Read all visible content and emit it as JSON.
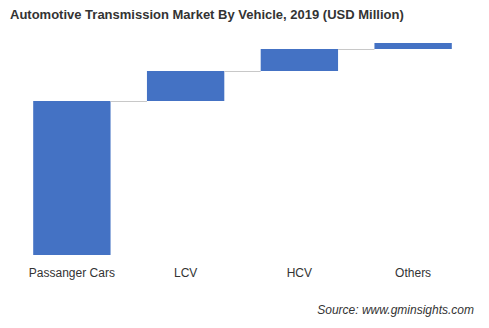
{
  "chart_data": {
    "type": "waterfall",
    "title": "Automotive Transmission Market By Vehicle, 2019 (USD Million)",
    "categories": [
      "Passanger Cars",
      "LCV",
      "HCV",
      "Others"
    ],
    "values": [
      77000,
      15000,
      11000,
      3000
    ],
    "color": "#4472c4",
    "ylim": [
      0,
      106000
    ],
    "tick_labels": "x",
    "grid": false,
    "source": "Source: www.gminsights.com"
  }
}
